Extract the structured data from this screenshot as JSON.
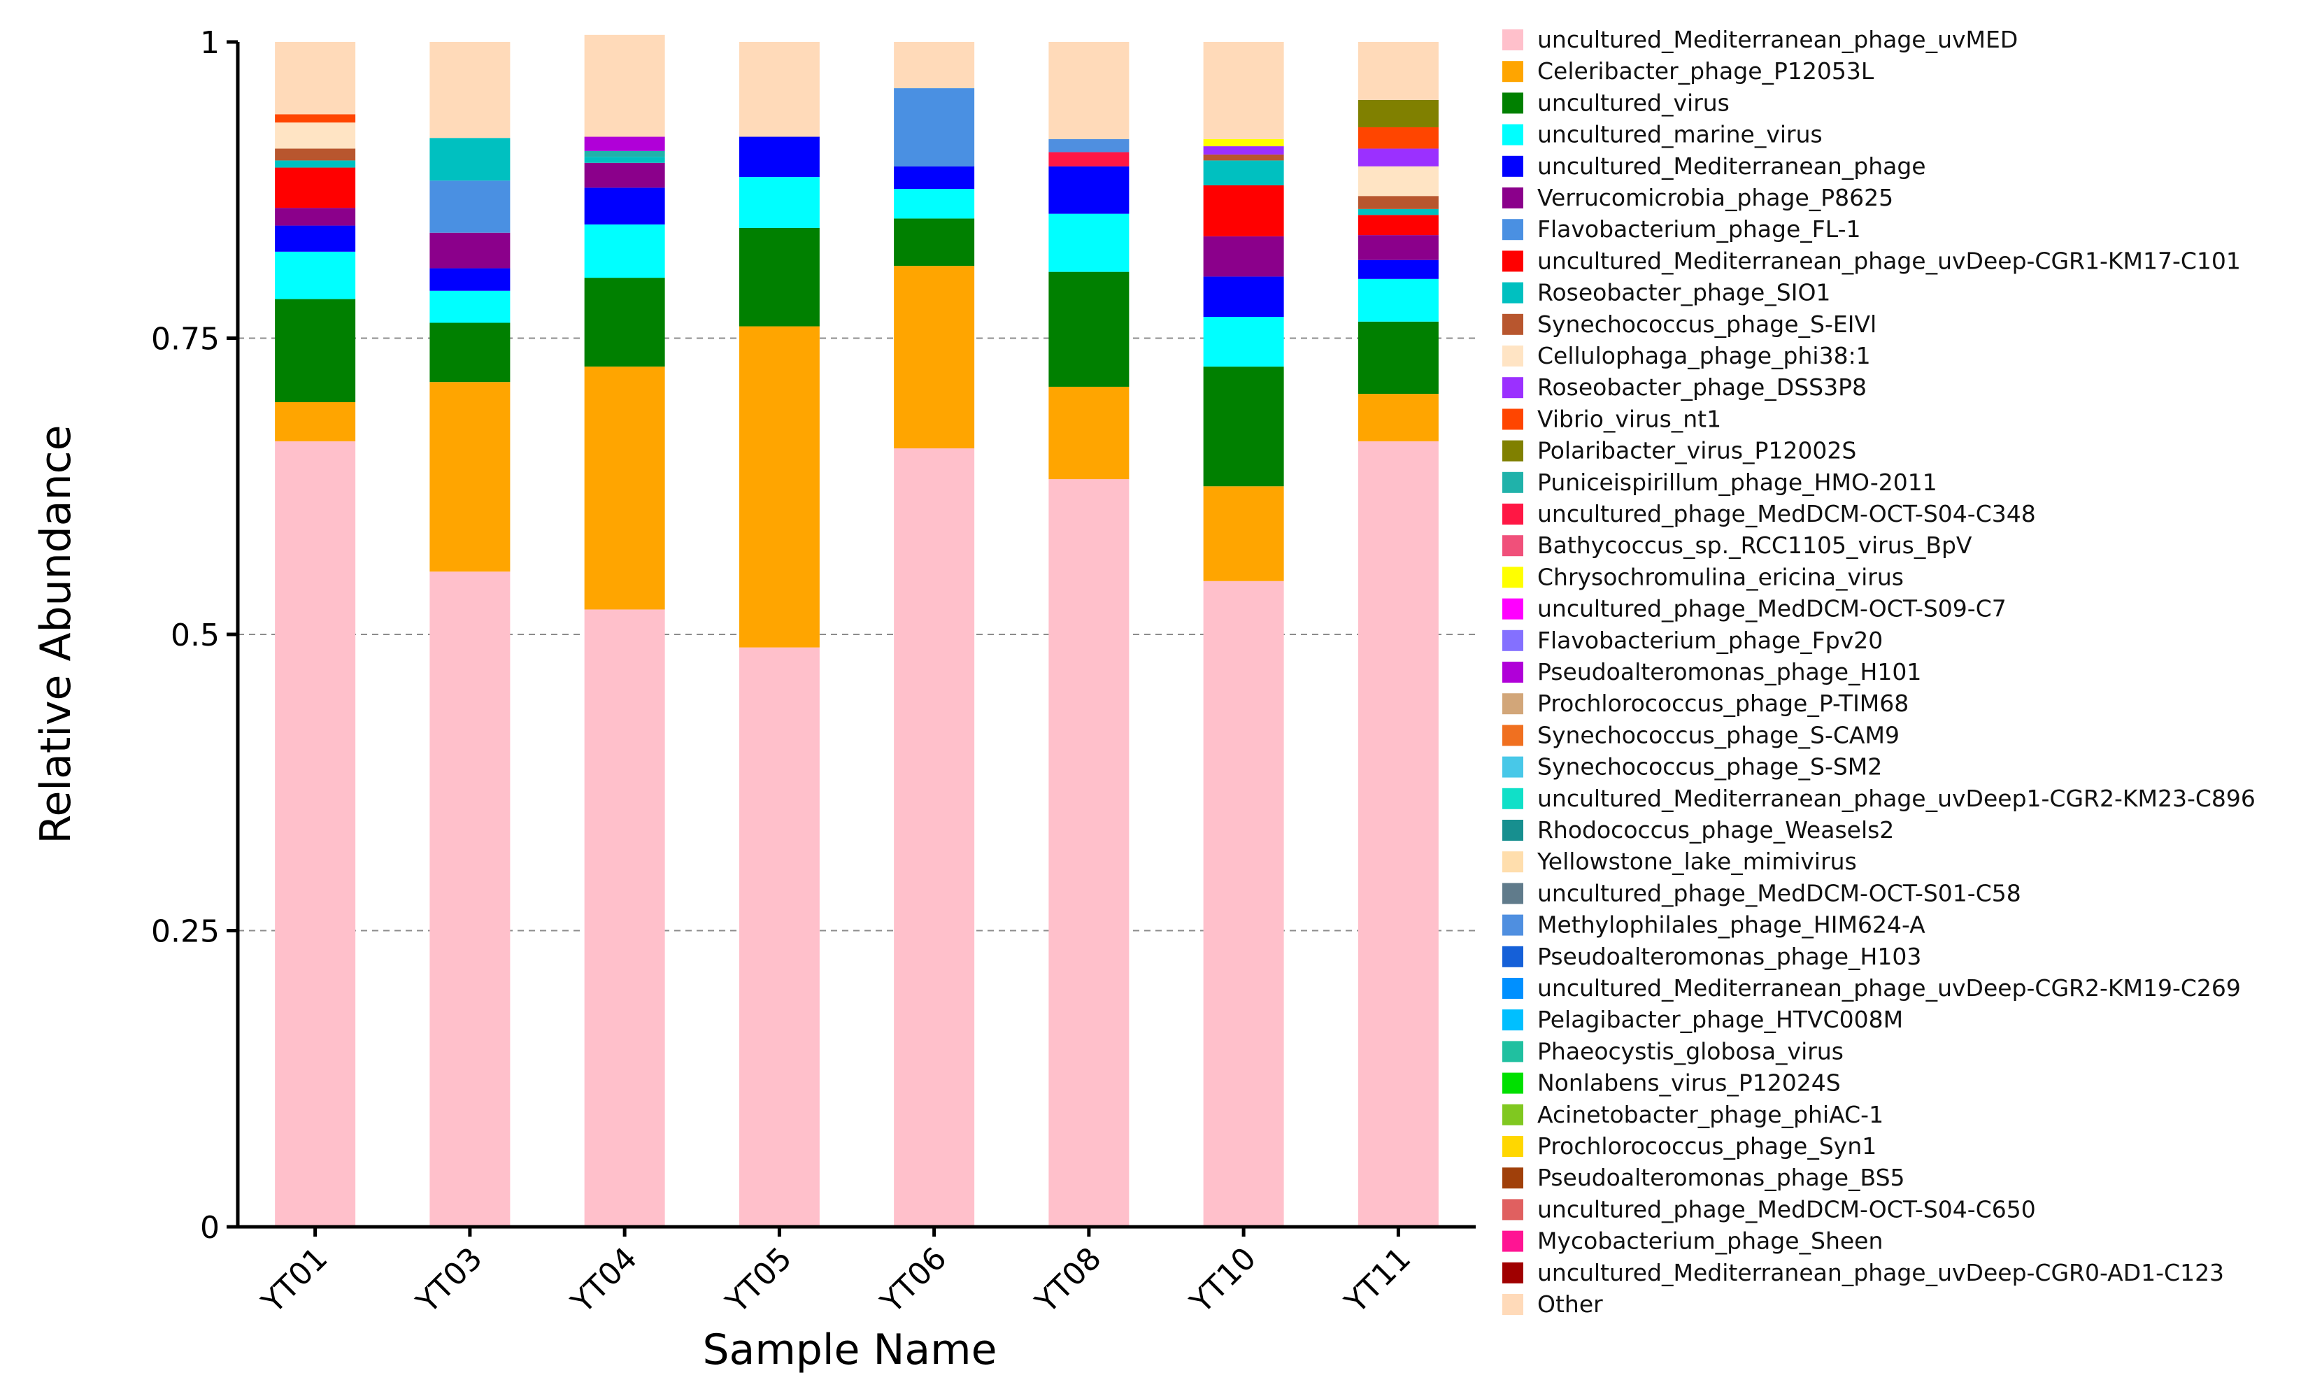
{
  "chart_data": {
    "type": "bar",
    "stacked": true,
    "xlabel": "Sample Name",
    "ylabel": "Relative Abundance",
    "ylim": [
      0,
      1
    ],
    "yticks": [
      0,
      0.25,
      0.5,
      0.75,
      1
    ],
    "ytick_labels": [
      "0",
      "0.25",
      "0.5",
      "0.75",
      "1"
    ],
    "grid": "dashed horizontal at 0.25, 0.5, 0.75",
    "legend_position": "right",
    "categories": [
      "YT01",
      "YT03",
      "YT04",
      "YT05",
      "YT06",
      "YT08",
      "YT10",
      "YT11"
    ],
    "series": [
      {
        "name": "uncultured_Mediterranean_phage_uvMED",
        "color": "#FFC0CB",
        "values": [
          0.663,
          0.553,
          0.521,
          0.489,
          0.657,
          0.631,
          0.545,
          0.663
        ]
      },
      {
        "name": "Celeribacter_phage_P12053L",
        "color": "#FFA500",
        "values": [
          0.033,
          0.16,
          0.205,
          0.271,
          0.154,
          0.078,
          0.08,
          0.04
        ]
      },
      {
        "name": "uncultured_virus",
        "color": "#008000",
        "values": [
          0.087,
          0.05,
          0.075,
          0.083,
          0.04,
          0.097,
          0.101,
          0.061
        ]
      },
      {
        "name": "uncultured_marine_virus",
        "color": "#00FFFF",
        "values": [
          0.04,
          0.027,
          0.045,
          0.043,
          0.025,
          0.049,
          0.042,
          0.036
        ]
      },
      {
        "name": "uncultured_Mediterranean_phage",
        "color": "#0000FF",
        "values": [
          0.022,
          0.019,
          0.031,
          0.034,
          0.019,
          0.04,
          0.034,
          0.016
        ]
      },
      {
        "name": "Verrucomicrobia_phage_P8625",
        "color": "#8B008B",
        "values": [
          0.015,
          0.03,
          0.021,
          0.0,
          0.0,
          0.0,
          0.034,
          0.021
        ]
      },
      {
        "name": "Flavobacterium_phage_FL-1",
        "color": "#4A90E2",
        "values": [
          0.0,
          0.044,
          0.0,
          0.0,
          0.066,
          0.0,
          0.0,
          0.0
        ]
      },
      {
        "name": "uncultured_Mediterranean_phage_uvDeep-CGR1-KM17-C101",
        "color": "#FF0000",
        "values": [
          0.034,
          0.0,
          0.0,
          0.0,
          0.0,
          0.0,
          0.043,
          0.017
        ]
      },
      {
        "name": "Roseobacter_phage_SIO1",
        "color": "#00C0C0",
        "values": [
          0.006,
          0.036,
          0.005,
          0.0,
          0.0,
          0.0,
          0.021,
          0.005
        ]
      },
      {
        "name": "Synechococcus_phage_S-EIVl",
        "color": "#B8562E",
        "values": [
          0.01,
          0.0,
          0.0,
          0.0,
          0.0,
          0.0,
          0.005,
          0.011
        ]
      },
      {
        "name": "Cellulophaga_phage_phi38:1",
        "color": "#FFE4C4",
        "values": [
          0.022,
          0.0,
          0.0,
          0.0,
          0.0,
          0.0,
          0.0,
          0.025
        ]
      },
      {
        "name": "Roseobacter_phage_DSS3P8",
        "color": "#9B30FF",
        "values": [
          0.0,
          0.0,
          0.0,
          0.0,
          0.0,
          0.0,
          0.007,
          0.015
        ]
      },
      {
        "name": "Vibrio_virus_nt1",
        "color": "#FF4500",
        "values": [
          0.007,
          0.0,
          0.0,
          0.0,
          0.0,
          0.0,
          0.0,
          0.018
        ]
      },
      {
        "name": "Polaribacter_virus_P12002S",
        "color": "#808000",
        "values": [
          0.0,
          0.0,
          0.0,
          0.0,
          0.0,
          0.0,
          0.0,
          0.023
        ]
      },
      {
        "name": "Puniceispirillum_phage_HMO-2011",
        "color": "#20B2AA",
        "values": [
          0.0,
          0.0,
          0.005,
          0.0,
          0.0,
          0.0,
          0.0,
          0.0
        ]
      },
      {
        "name": "uncultured_phage_MedDCM-OCT-S04-C348",
        "color": "#FF1744",
        "values": [
          0.0,
          0.0,
          0.0,
          0.0,
          0.0,
          0.012,
          0.0,
          0.0
        ]
      },
      {
        "name": "Bathycoccus_sp._RCC1105_virus_BpV",
        "color": "#F0507A",
        "values": [
          0.0,
          0.0,
          0.0,
          0.0,
          0.0,
          0.0,
          0.0,
          0.0
        ]
      },
      {
        "name": "Chrysochromulina_ericina_virus",
        "color": "#FFFF00",
        "values": [
          0.0,
          0.0,
          0.0,
          0.0,
          0.0,
          0.0,
          0.006,
          0.0
        ]
      },
      {
        "name": "uncultured_phage_MedDCM-OCT-S09-C7",
        "color": "#FF00FF",
        "values": [
          0.0,
          0.0,
          0.0,
          0.0,
          0.0,
          0.0,
          0.0,
          0.0
        ]
      },
      {
        "name": "Flavobacterium_phage_Fpv20",
        "color": "#8470FF",
        "values": [
          0.0,
          0.0,
          0.0,
          0.0,
          0.0,
          0.0,
          0.0,
          0.0
        ]
      },
      {
        "name": "Pseudoalteromonas_phage_H101",
        "color": "#B000D8",
        "values": [
          0.0,
          0.0,
          0.012,
          0.0,
          0.0,
          0.0,
          0.0,
          0.0
        ]
      },
      {
        "name": "Prochlorococcus_phage_P-TIM68",
        "color": "#D2A679",
        "values": [
          0.0,
          0.0,
          0.0,
          0.0,
          0.0,
          0.0,
          0.0,
          0.0
        ]
      },
      {
        "name": "Synechococcus_phage_S-CAM9",
        "color": "#F07020",
        "values": [
          0.0,
          0.0,
          0.0,
          0.0,
          0.0,
          0.0,
          0.0,
          0.0
        ]
      },
      {
        "name": "Synechococcus_phage_S-SM2",
        "color": "#48C8E8",
        "values": [
          0.0,
          0.0,
          0.0,
          0.0,
          0.0,
          0.0,
          0.0,
          0.0
        ]
      },
      {
        "name": "uncultured_Mediterranean_phage_uvDeep1-CGR2-KM23-C896",
        "color": "#10E0C8",
        "values": [
          0.0,
          0.0,
          0.0,
          0.0,
          0.0,
          0.0,
          0.0,
          0.0
        ]
      },
      {
        "name": "Rhodococcus_phage_Weasels2",
        "color": "#178F8F",
        "values": [
          0.0,
          0.0,
          0.0,
          0.0,
          0.0,
          0.0,
          0.0,
          0.0
        ]
      },
      {
        "name": "Yellowstone_lake_mimivirus",
        "color": "#FFDEAD",
        "values": [
          0.0,
          0.0,
          0.0,
          0.0,
          0.0,
          0.0,
          0.0,
          0.0
        ]
      },
      {
        "name": "uncultured_phage_MedDCM-OCT-S01-C58",
        "color": "#607B8B",
        "values": [
          0.0,
          0.0,
          0.0,
          0.0,
          0.0,
          0.0,
          0.0,
          0.0
        ]
      },
      {
        "name": "Methylophilales_phage_HIM624-A",
        "color": "#4F8FE0",
        "values": [
          0.0,
          0.0,
          0.0,
          0.0,
          0.0,
          0.011,
          0.0,
          0.0
        ]
      },
      {
        "name": "Pseudoalteromonas_phage_H103",
        "color": "#1560D8",
        "values": [
          0.0,
          0.0,
          0.0,
          0.0,
          0.0,
          0.0,
          0.0,
          0.0
        ]
      },
      {
        "name": "uncultured_Mediterranean_phage_uvDeep-CGR2-KM19-C269",
        "color": "#0090FF",
        "values": [
          0.0,
          0.0,
          0.0,
          0.0,
          0.0,
          0.0,
          0.0,
          0.0
        ]
      },
      {
        "name": "Pelagibacter_phage_HTVC008M",
        "color": "#00BFFF",
        "values": [
          0.0,
          0.0,
          0.0,
          0.0,
          0.0,
          0.0,
          0.0,
          0.0
        ]
      },
      {
        "name": "Phaeocystis_globosa_virus",
        "color": "#20C0A0",
        "values": [
          0.0,
          0.0,
          0.0,
          0.0,
          0.0,
          0.0,
          0.0,
          0.0
        ]
      },
      {
        "name": "Nonlabens_virus_P12024S",
        "color": "#00E000",
        "values": [
          0.0,
          0.0,
          0.0,
          0.0,
          0.0,
          0.0,
          0.0,
          0.0
        ]
      },
      {
        "name": "Acinetobacter_phage_phiAC-1",
        "color": "#80C820",
        "values": [
          0.0,
          0.0,
          0.0,
          0.0,
          0.0,
          0.0,
          0.0,
          0.0
        ]
      },
      {
        "name": "Prochlorococcus_phage_Syn1",
        "color": "#FFD700",
        "values": [
          0.0,
          0.0,
          0.0,
          0.0,
          0.0,
          0.0,
          0.0,
          0.0
        ]
      },
      {
        "name": "Pseudoalteromonas_phage_BS5",
        "color": "#A0400A",
        "values": [
          0.0,
          0.0,
          0.0,
          0.0,
          0.0,
          0.0,
          0.0,
          0.0
        ]
      },
      {
        "name": "uncultured_phage_MedDCM-OCT-S04-C650",
        "color": "#E06060",
        "values": [
          0.0,
          0.0,
          0.0,
          0.0,
          0.0,
          0.0,
          0.0,
          0.0
        ]
      },
      {
        "name": "Mycobacterium_phage_Sheen",
        "color": "#FF1493",
        "values": [
          0.0,
          0.0,
          0.0,
          0.0,
          0.0,
          0.0,
          0.0,
          0.0
        ]
      },
      {
        "name": "uncultured_Mediterranean_phage_uvDeep-CGR0-AD1-C123",
        "color": "#A00000",
        "values": [
          0.0,
          0.0,
          0.0,
          0.0,
          0.0,
          0.0,
          0.0,
          0.0
        ]
      },
      {
        "name": "Other",
        "color": "#FFDAB9",
        "values": [
          0.061,
          0.081,
          0.086,
          0.08,
          0.039,
          0.082,
          0.082,
          0.049
        ]
      }
    ]
  }
}
